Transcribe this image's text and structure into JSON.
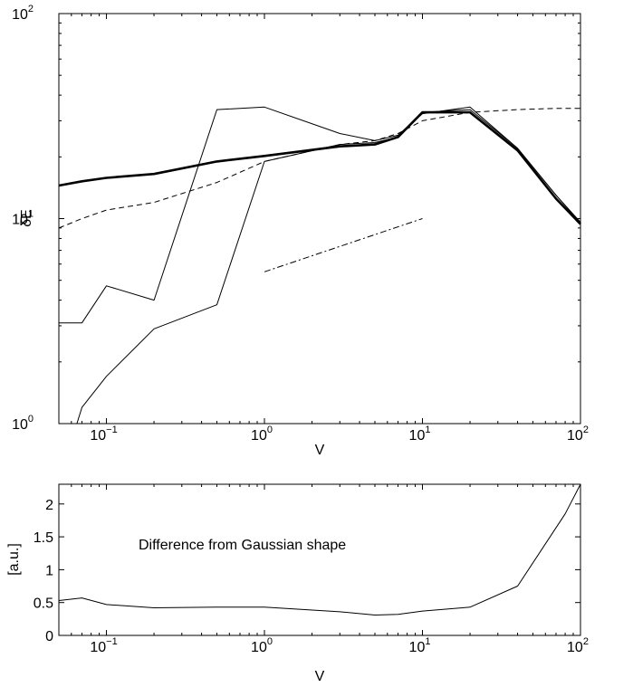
{
  "chart_data": [
    {
      "type": "line",
      "xlabel": "V",
      "ylabel": "δE",
      "xscale": "log",
      "yscale": "log",
      "xlim": [
        0.05,
        100
      ],
      "ylim": [
        1,
        100
      ],
      "grid": false,
      "xticks": [
        {
          "base": "10",
          "exp": "−1"
        },
        {
          "base": "10",
          "exp": "0"
        },
        {
          "base": "10",
          "exp": "1"
        },
        {
          "base": "10",
          "exp": "2"
        }
      ],
      "yticks": [
        {
          "base": "10",
          "exp": "0"
        },
        {
          "base": "10",
          "exp": "1"
        },
        {
          "base": "10",
          "exp": "2"
        }
      ],
      "series": [
        {
          "style": "thick-solid",
          "x": [
            0.05,
            0.07,
            0.1,
            0.2,
            0.5,
            1,
            3,
            5,
            7,
            10,
            20,
            40,
            70,
            100
          ],
          "y": [
            14.5,
            15.2,
            15.8,
            16.5,
            19,
            20.2,
            22.5,
            23,
            25,
            33,
            33,
            21.5,
            12.5,
            9.4
          ]
        },
        {
          "style": "dashed",
          "x": [
            0.05,
            0.07,
            0.1,
            0.2,
            0.5,
            1,
            3,
            5,
            7,
            10,
            20,
            40,
            70,
            100
          ],
          "y": [
            9,
            10,
            11,
            12,
            15,
            19,
            23,
            24,
            26,
            30,
            33,
            34,
            34.5,
            34.5
          ]
        },
        {
          "style": "thin-solid",
          "x": [
            0.05,
            0.07,
            0.1,
            0.2,
            0.5,
            1,
            3,
            5,
            7,
            10,
            20,
            40,
            70,
            100
          ],
          "y": [
            3.1,
            3.1,
            4.7,
            4.0,
            34,
            35,
            26,
            24,
            25.5,
            32.5,
            35,
            22,
            13,
            9.6
          ]
        },
        {
          "style": "thin-solid",
          "x": [
            0.065,
            0.07,
            0.1,
            0.2,
            0.5,
            1,
            3,
            5,
            7,
            10,
            20,
            40,
            70,
            100
          ],
          "y": [
            1.0,
            1.2,
            1.7,
            2.9,
            3.8,
            19,
            23,
            23.5,
            25,
            33,
            34,
            22,
            13,
            9.5
          ]
        },
        {
          "style": "dash-dot",
          "x": [
            1,
            10
          ],
          "y": [
            5.5,
            10
          ]
        }
      ]
    },
    {
      "type": "line",
      "xlabel": "V",
      "ylabel": "[a.u.]",
      "xscale": "log",
      "xlim": [
        0.05,
        100
      ],
      "ylim": [
        0,
        2.3
      ],
      "grid": false,
      "annotation": "Difference from Gaussian shape",
      "xticks": [
        {
          "base": "10",
          "exp": "−1"
        },
        {
          "base": "10",
          "exp": "0"
        },
        {
          "base": "10",
          "exp": "1"
        },
        {
          "base": "10",
          "exp": "2"
        }
      ],
      "ytick_values": [
        0,
        0.5,
        1,
        1.5,
        2
      ],
      "ytick_labels": [
        "0",
        "0.5",
        "1",
        "1.5",
        "2"
      ],
      "series": [
        {
          "style": "thin-solid",
          "x": [
            0.05,
            0.07,
            0.1,
            0.2,
            0.5,
            1,
            3,
            5,
            7,
            10,
            20,
            40,
            80,
            100
          ],
          "y": [
            0.53,
            0.57,
            0.47,
            0.42,
            0.43,
            0.43,
            0.36,
            0.31,
            0.32,
            0.37,
            0.43,
            0.75,
            1.85,
            2.3
          ]
        }
      ]
    }
  ]
}
